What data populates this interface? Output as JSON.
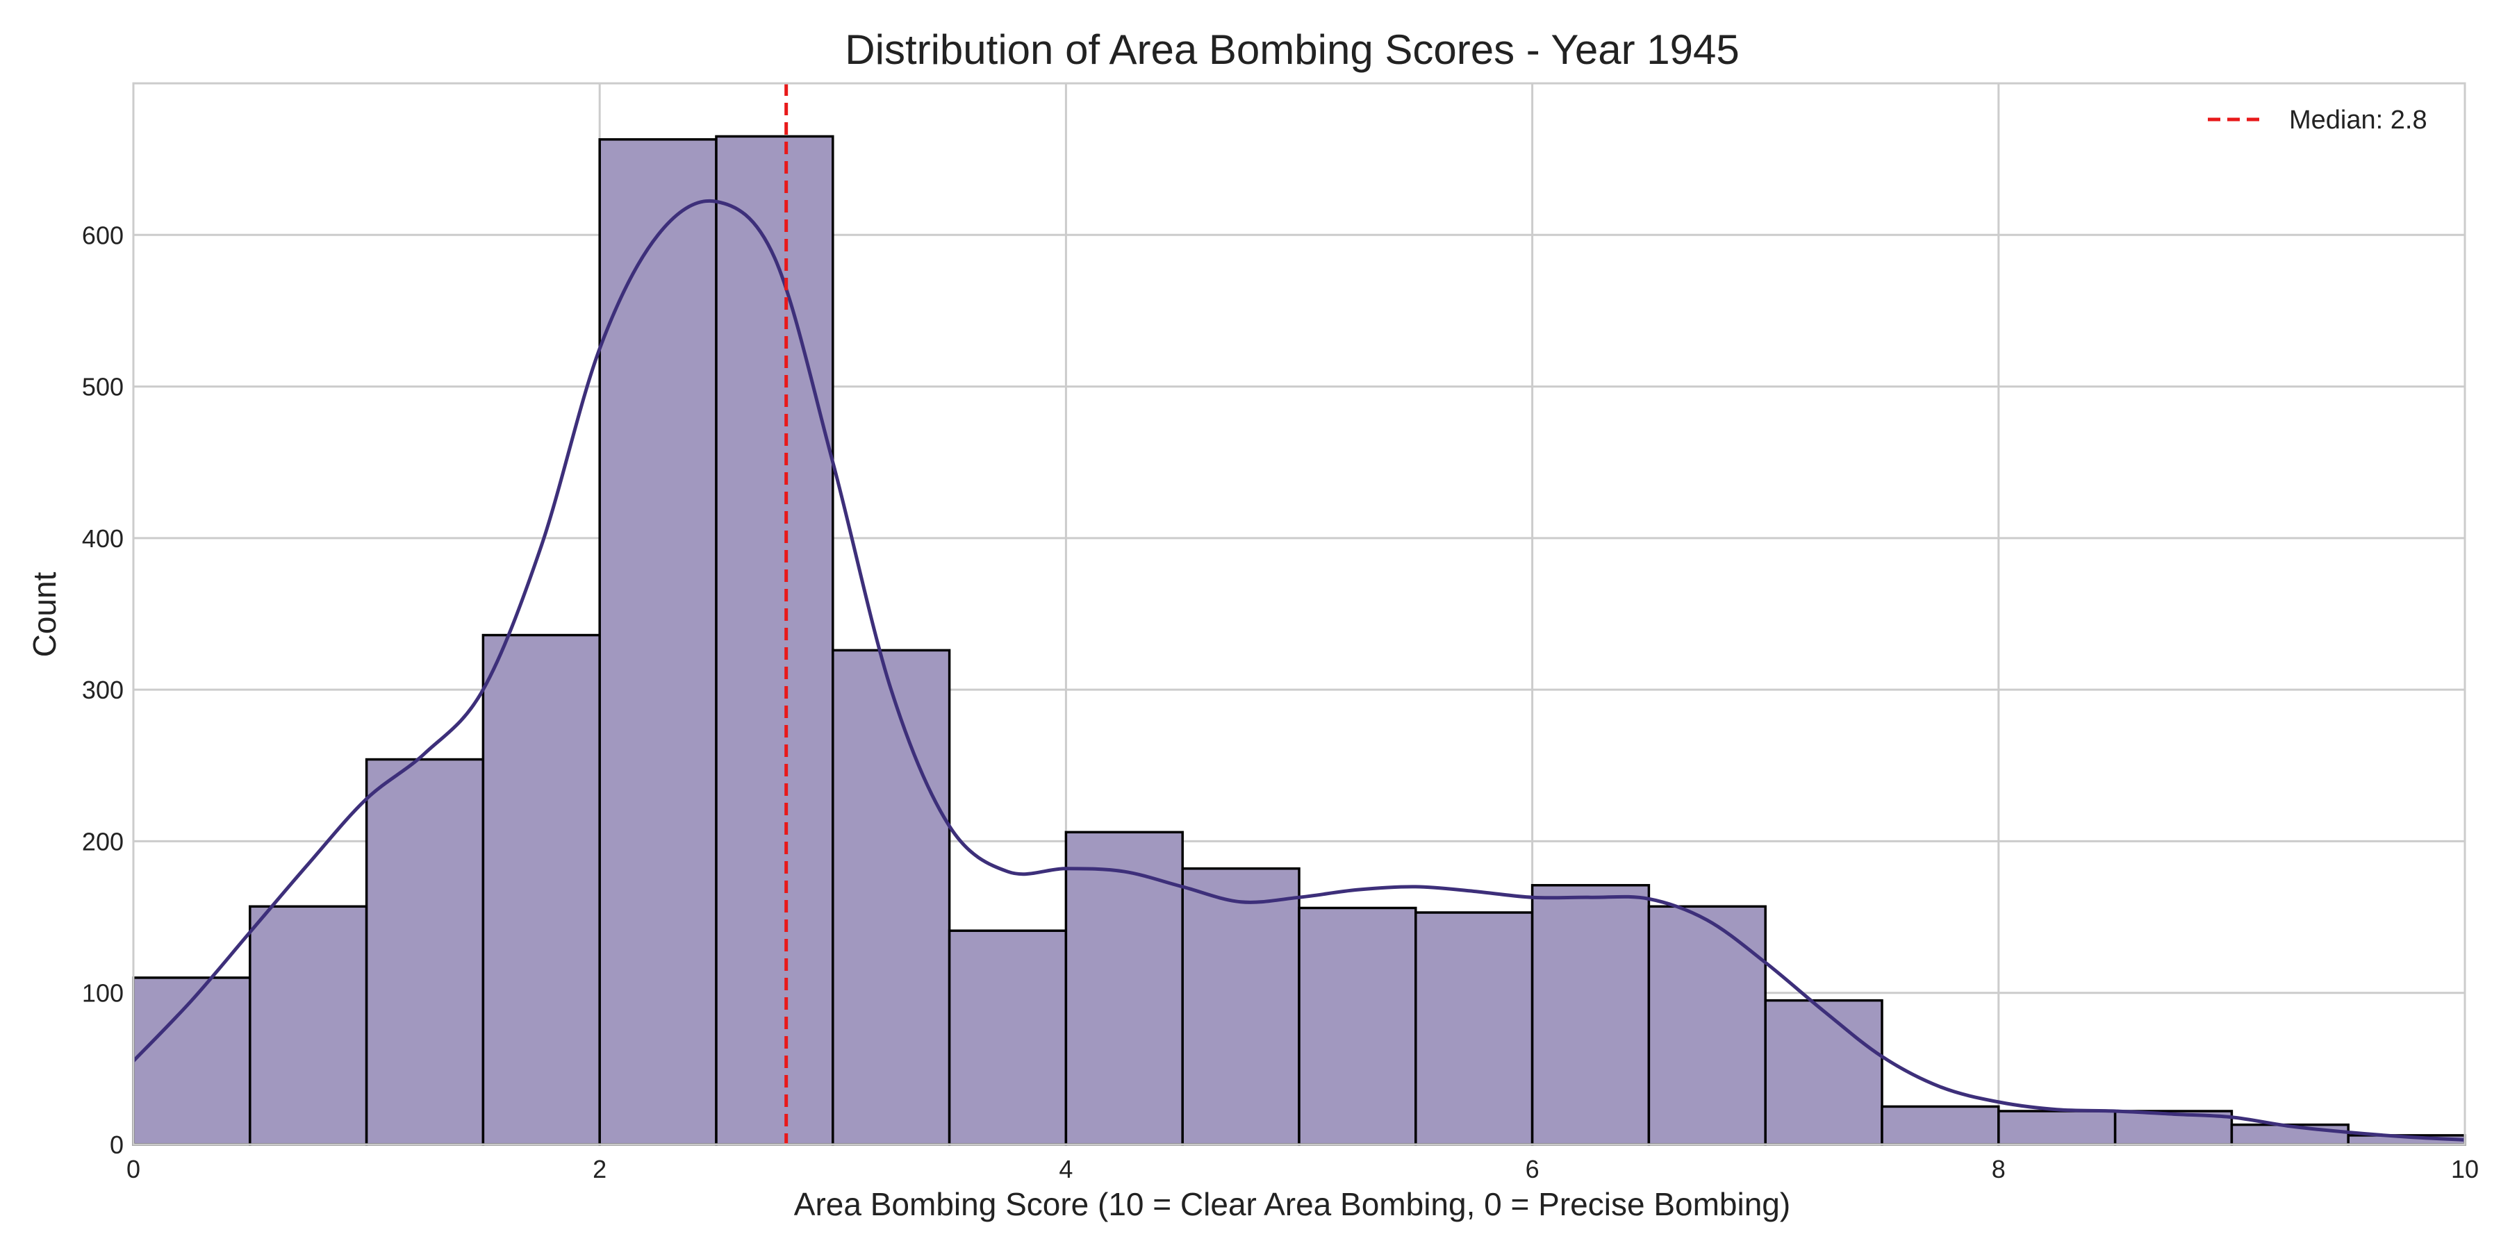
{
  "chart_data": {
    "type": "bar",
    "subtype": "histogram-with-kde",
    "title": "Distribution of Area Bombing Scores - Year 1945",
    "xlabel": "Area Bombing Score (10 = Clear Area Bombing, 0 = Precise Bombing)",
    "ylabel": "Count",
    "xlim": [
      0,
      10
    ],
    "ylim": [
      0,
      700
    ],
    "x_ticks": [
      0,
      2,
      4,
      6,
      8,
      10
    ],
    "y_ticks": [
      0,
      100,
      200,
      300,
      400,
      500,
      600
    ],
    "grid": true,
    "legend_position": "top-right",
    "bin_width": 0.5,
    "bins": [
      {
        "start": 0.0,
        "end": 0.5,
        "count": 110
      },
      {
        "start": 0.5,
        "end": 1.0,
        "count": 157
      },
      {
        "start": 1.0,
        "end": 1.5,
        "count": 254
      },
      {
        "start": 1.5,
        "end": 2.0,
        "count": 336
      },
      {
        "start": 2.0,
        "end": 2.5,
        "count": 663
      },
      {
        "start": 2.5,
        "end": 3.0,
        "count": 665
      },
      {
        "start": 3.0,
        "end": 3.5,
        "count": 326
      },
      {
        "start": 3.5,
        "end": 4.0,
        "count": 141
      },
      {
        "start": 4.0,
        "end": 4.5,
        "count": 206
      },
      {
        "start": 4.5,
        "end": 5.0,
        "count": 182
      },
      {
        "start": 5.0,
        "end": 5.5,
        "count": 156
      },
      {
        "start": 5.5,
        "end": 6.0,
        "count": 153
      },
      {
        "start": 6.0,
        "end": 6.5,
        "count": 171
      },
      {
        "start": 6.5,
        "end": 7.0,
        "count": 157
      },
      {
        "start": 7.0,
        "end": 7.5,
        "count": 95
      },
      {
        "start": 7.5,
        "end": 8.0,
        "count": 25
      },
      {
        "start": 8.0,
        "end": 8.5,
        "count": 22
      },
      {
        "start": 8.5,
        "end": 9.0,
        "count": 22
      },
      {
        "start": 9.0,
        "end": 9.5,
        "count": 13
      },
      {
        "start": 9.5,
        "end": 10.0,
        "count": 6
      }
    ],
    "kde": {
      "x": [
        0,
        0.25,
        0.5,
        0.75,
        1.0,
        1.25,
        1.5,
        1.75,
        2.0,
        2.25,
        2.5,
        2.75,
        3.0,
        3.25,
        3.5,
        3.75,
        4.0,
        4.25,
        4.5,
        4.75,
        5.0,
        5.25,
        5.5,
        5.75,
        6.0,
        6.25,
        6.5,
        6.75,
        7.0,
        7.25,
        7.5,
        7.75,
        8.0,
        8.25,
        8.5,
        8.75,
        9.0,
        9.25,
        9.5,
        9.75,
        10.0
      ],
      "y": [
        55,
        95,
        140,
        185,
        228,
        258,
        300,
        395,
        525,
        600,
        622,
        585,
        450,
        300,
        210,
        180,
        182,
        180,
        170,
        160,
        163,
        168,
        170,
        167,
        163,
        163,
        162,
        148,
        120,
        88,
        58,
        38,
        28,
        23,
        22,
        20,
        18,
        12,
        8,
        5,
        3
      ]
    },
    "median": {
      "value": 2.8,
      "label": "Median: 2.8"
    },
    "colors": {
      "bar_fill": "#a198bf",
      "bar_edge": "#000000",
      "kde_line": "#3d2f7a",
      "median_line": "#e8191a",
      "grid": "#cccccc",
      "frame": "#cccccc"
    }
  }
}
